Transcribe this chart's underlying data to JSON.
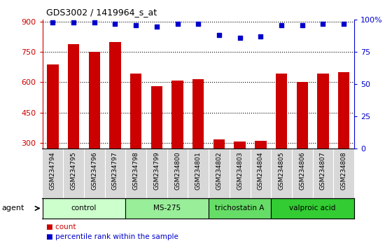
{
  "title": "GDS3002 / 1419964_s_at",
  "samples": [
    "GSM234794",
    "GSM234795",
    "GSM234796",
    "GSM234797",
    "GSM234798",
    "GSM234799",
    "GSM234800",
    "GSM234801",
    "GSM234802",
    "GSM234803",
    "GSM234804",
    "GSM234805",
    "GSM234806",
    "GSM234807",
    "GSM234808"
  ],
  "counts": [
    690,
    790,
    750,
    800,
    645,
    580,
    610,
    615,
    315,
    305,
    308,
    645,
    600,
    645,
    650
  ],
  "percentiles": [
    98,
    98,
    98,
    97,
    96,
    95,
    97,
    97,
    88,
    86,
    87,
    96,
    96,
    97,
    97
  ],
  "bar_color": "#cc0000",
  "dot_color": "#0000cc",
  "ylim_left": [
    270,
    910
  ],
  "ylim_right": [
    0,
    100
  ],
  "yticks_left": [
    300,
    450,
    600,
    750,
    900
  ],
  "yticks_right": [
    0,
    25,
    50,
    75,
    100
  ],
  "groups": [
    {
      "label": "control",
      "start": 0,
      "end": 3,
      "color": "#ccffcc"
    },
    {
      "label": "MS-275",
      "start": 4,
      "end": 7,
      "color": "#99ee99"
    },
    {
      "label": "trichostatin A",
      "start": 8,
      "end": 10,
      "color": "#66dd66"
    },
    {
      "label": "valproic acid",
      "start": 11,
      "end": 14,
      "color": "#33cc33"
    }
  ],
  "group_colors": [
    "#ccffcc",
    "#99ee99",
    "#66dd66",
    "#33cc33"
  ],
  "agent_label": "agent",
  "legend_count_label": "count",
  "legend_percentile_label": "percentile rank within the sample",
  "background_color": "#ffffff",
  "plot_bg_color": "#ffffff",
  "bar_width": 0.55,
  "tick_label_bg": "#d8d8d8"
}
